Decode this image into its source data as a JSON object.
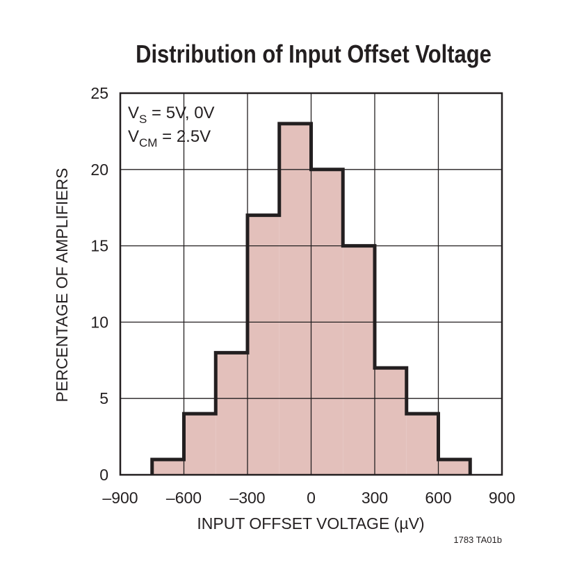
{
  "chart_data": {
    "type": "bar",
    "subtype": "histogram",
    "title": "Distribution of Input Offset Voltage",
    "xlabel": "INPUT OFFSET VOLTAGE (µV)",
    "ylabel": "PERCENTAGE OF AMPLIFIERS",
    "xlim": [
      -900,
      900
    ],
    "ylim": [
      0,
      25
    ],
    "x_ticks": [
      -900,
      -600,
      -300,
      0,
      300,
      600,
      900
    ],
    "x_tick_labels": [
      "–900",
      "–600",
      "–300",
      "0",
      "300",
      "600",
      "900"
    ],
    "y_ticks": [
      0,
      5,
      10,
      15,
      20,
      25
    ],
    "y_tick_labels": [
      "0",
      "5",
      "10",
      "15",
      "20",
      "25"
    ],
    "bin_edges": [
      -750,
      -600,
      -450,
      -300,
      -150,
      0,
      150,
      300,
      450,
      600,
      750
    ],
    "values": [
      1,
      4,
      8,
      17,
      23,
      20,
      15,
      7,
      4,
      1
    ],
    "grid": true,
    "annotations": {
      "line1_main": "V",
      "line1_sub": "S",
      "line1_rest": " = 5V, 0V",
      "line2_main": "V",
      "line2_sub": "CM",
      "line2_rest": " = 2.5V"
    },
    "figure_note": "1783 TA01b",
    "colors": {
      "fill": "#e3c0bb",
      "outline": "#231f20",
      "grid": "#231f20"
    }
  }
}
